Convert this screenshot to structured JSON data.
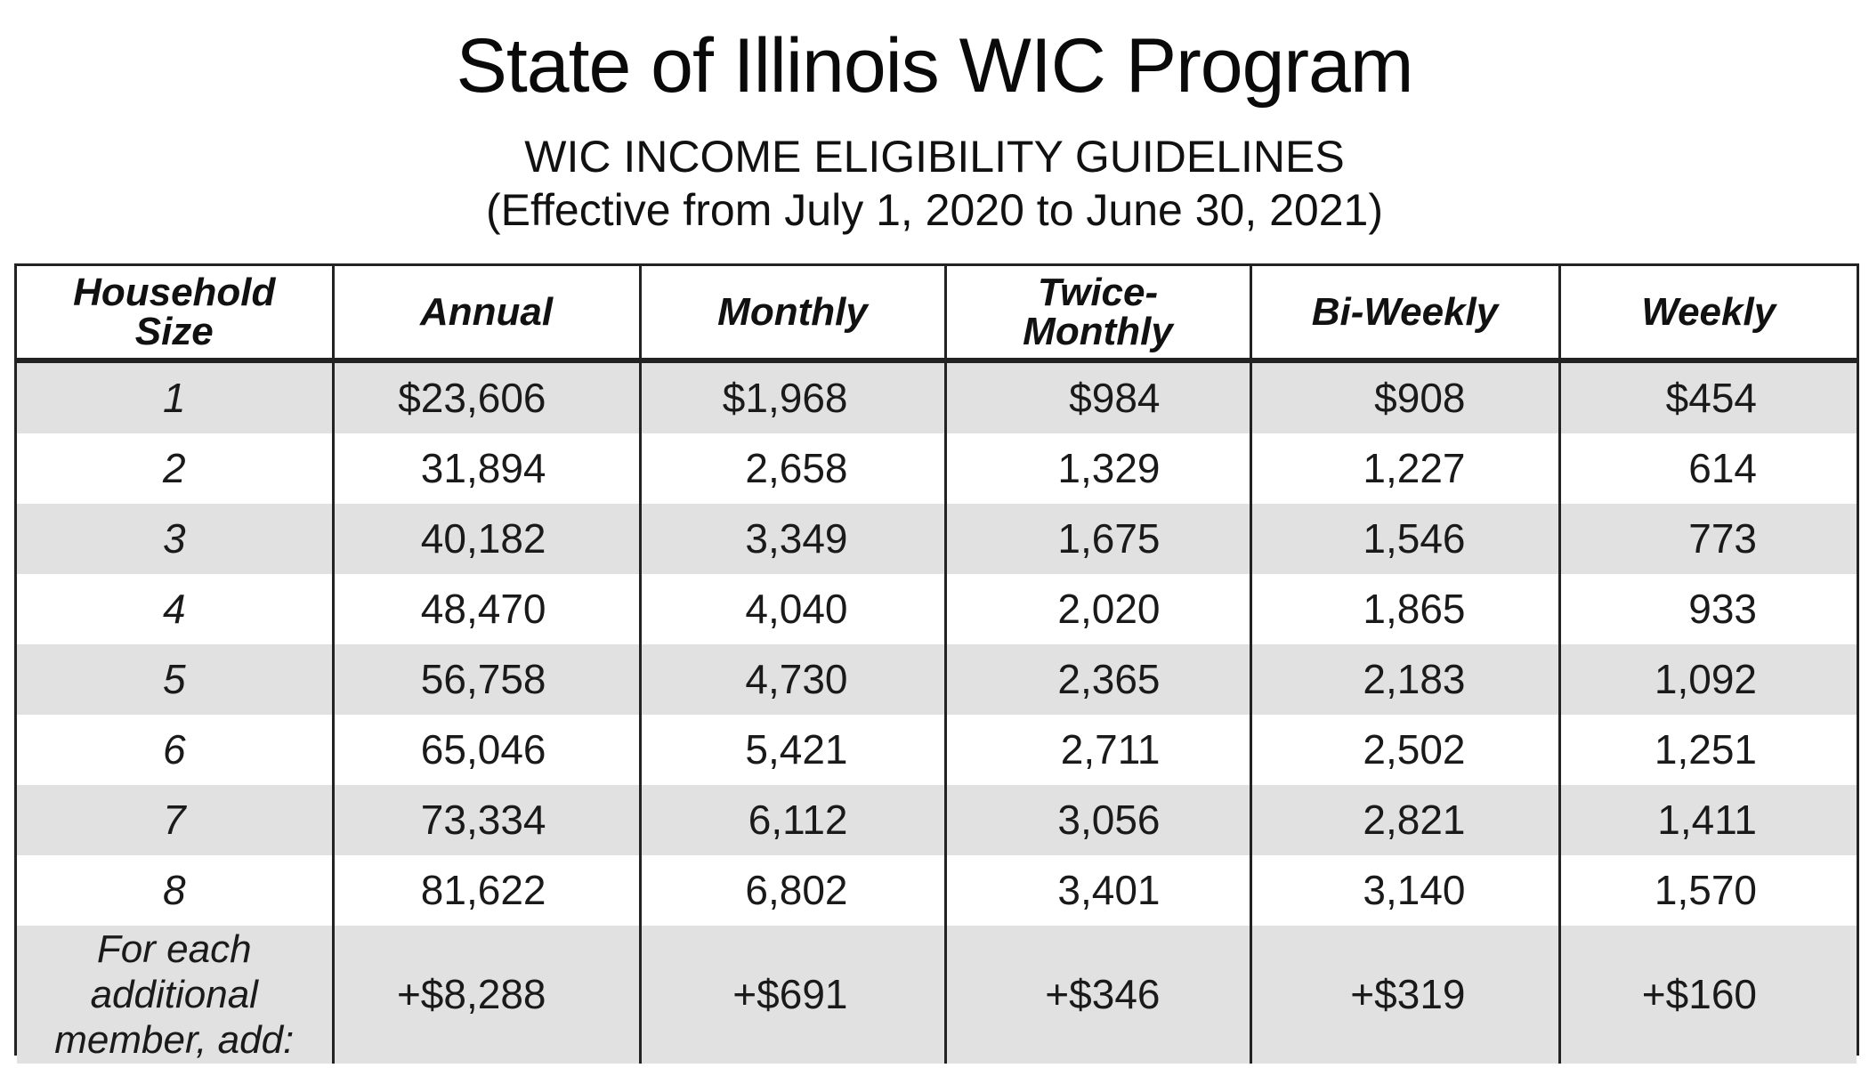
{
  "document": {
    "title": "State of Illinois WIC Program",
    "subtitle": "WIC INCOME ELIGIBILITY GUIDELINES",
    "effective": "(Effective from July 1, 2020 to June 30, 2021)"
  },
  "table": {
    "headers": [
      "Household Size",
      "Annual",
      "Monthly",
      "Twice-Monthly",
      "Bi-Weekly",
      "Weekly"
    ],
    "header_lines": {
      "household_1": "Household",
      "household_2": "Size",
      "twice_1": "Twice-",
      "twice_2": "Monthly"
    },
    "rows": [
      {
        "size": "1",
        "annual": "$23,606",
        "monthly": "$1,968",
        "twice_monthly": "$984",
        "bi_weekly": "$908",
        "weekly": "$454"
      },
      {
        "size": "2",
        "annual": "31,894",
        "monthly": "2,658",
        "twice_monthly": "1,329",
        "bi_weekly": "1,227",
        "weekly": "614"
      },
      {
        "size": "3",
        "annual": "40,182",
        "monthly": "3,349",
        "twice_monthly": "1,675",
        "bi_weekly": "1,546",
        "weekly": "773"
      },
      {
        "size": "4",
        "annual": "48,470",
        "monthly": "4,040",
        "twice_monthly": "2,020",
        "bi_weekly": "1,865",
        "weekly": "933"
      },
      {
        "size": "5",
        "annual": "56,758",
        "monthly": "4,730",
        "twice_monthly": "2,365",
        "bi_weekly": "2,183",
        "weekly": "1,092"
      },
      {
        "size": "6",
        "annual": "65,046",
        "monthly": "5,421",
        "twice_monthly": "2,711",
        "bi_weekly": "2,502",
        "weekly": "1,251"
      },
      {
        "size": "7",
        "annual": "73,334",
        "monthly": "6,112",
        "twice_monthly": "3,056",
        "bi_weekly": "2,821",
        "weekly": "1,411"
      },
      {
        "size": "8",
        "annual": "81,622",
        "monthly": "6,802",
        "twice_monthly": "3,401",
        "bi_weekly": "3,140",
        "weekly": "1,570"
      }
    ],
    "additional": {
      "label_1": "For each",
      "label_2": "additional",
      "label_3": "member, add:",
      "annual": "+$8,288",
      "monthly": "+$691",
      "twice_monthly": "+$346",
      "bi_weekly": "+$319",
      "weekly": "+$160"
    }
  }
}
